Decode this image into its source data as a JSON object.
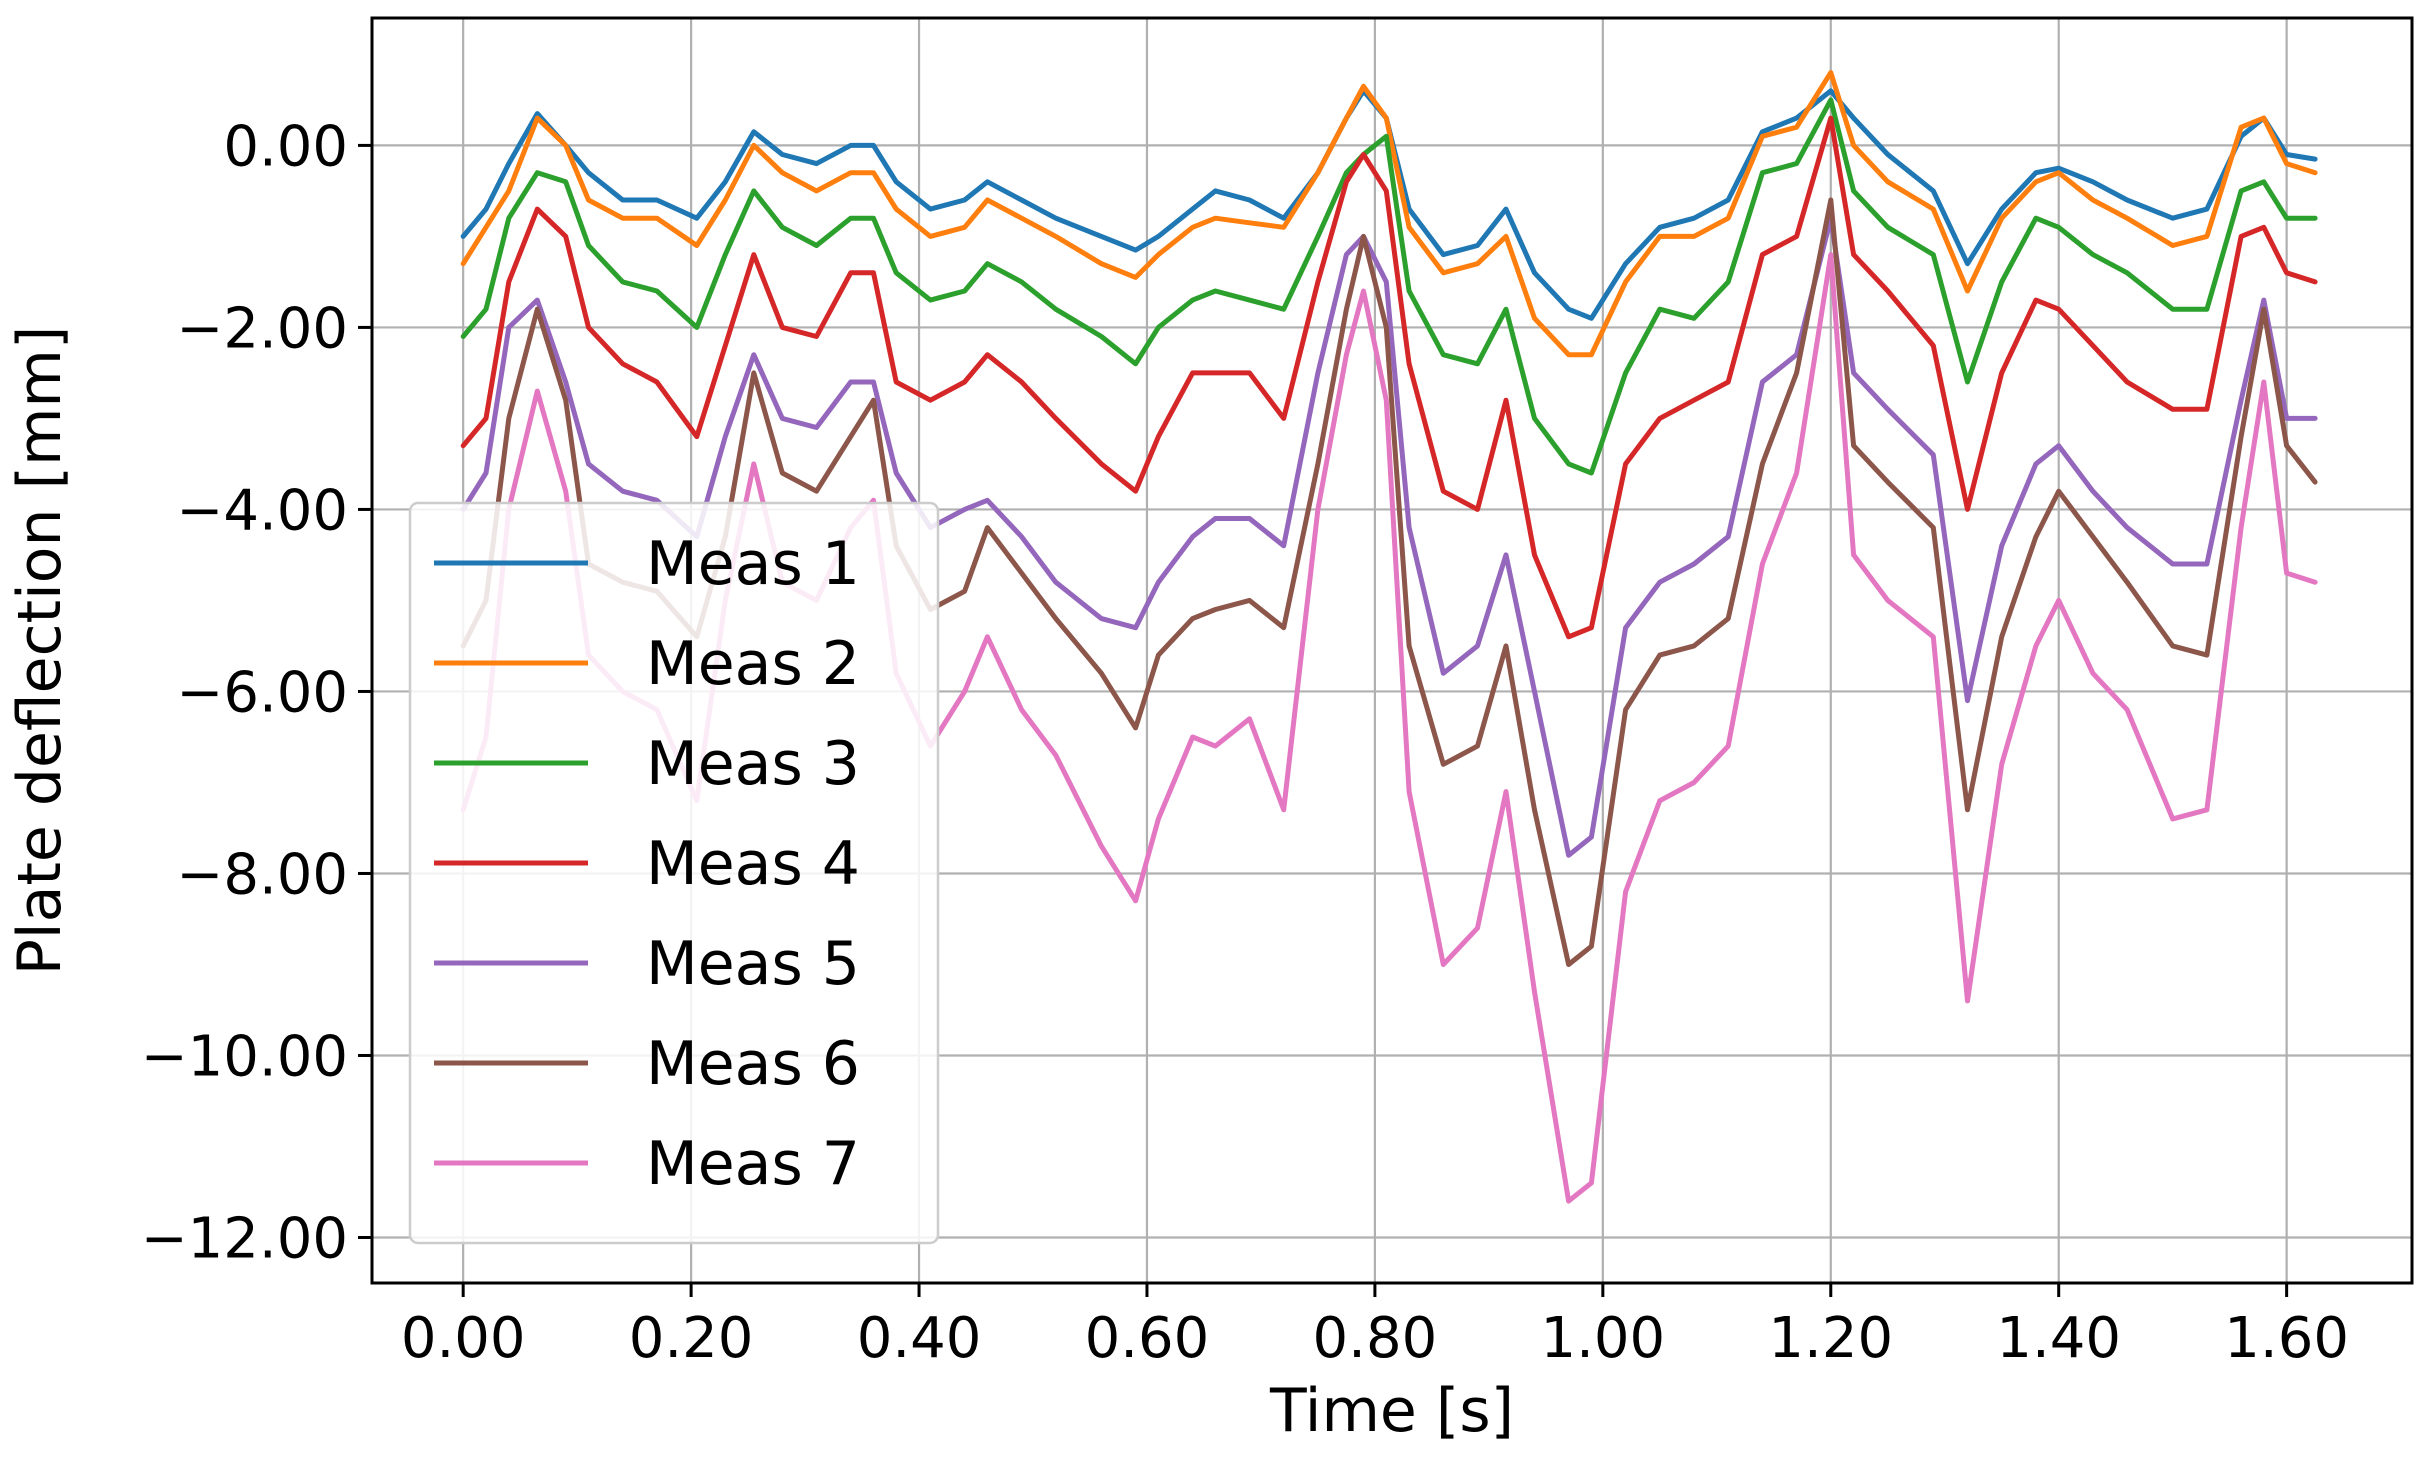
{
  "chart_data": {
    "type": "line",
    "title": "",
    "xlabel": "Time [s]",
    "ylabel": "Plate deflection [mm]",
    "xlim": [
      -0.08,
      1.71
    ],
    "ylim": [
      -12.5,
      1.4
    ],
    "grid": true,
    "legend_position": "lower-left",
    "x_ticks": [
      0.0,
      0.2,
      0.4,
      0.6,
      0.8,
      1.0,
      1.2,
      1.4,
      1.6
    ],
    "x_tick_labels": [
      "0.00",
      "0.20",
      "0.40",
      "0.60",
      "0.80",
      "1.00",
      "1.20",
      "1.40",
      "1.60"
    ],
    "y_ticks": [
      0,
      -2,
      -4,
      -6,
      -8,
      -10,
      -12
    ],
    "y_tick_labels": [
      "0.00",
      "−2.00",
      "−4.00",
      "−6.00",
      "−8.00",
      "−10.00",
      "−12.00"
    ],
    "x": [
      0.0,
      0.02,
      0.04,
      0.065,
      0.09,
      0.11,
      0.14,
      0.17,
      0.205,
      0.23,
      0.255,
      0.28,
      0.31,
      0.34,
      0.36,
      0.38,
      0.41,
      0.44,
      0.46,
      0.49,
      0.52,
      0.56,
      0.59,
      0.61,
      0.64,
      0.66,
      0.69,
      0.72,
      0.75,
      0.775,
      0.79,
      0.81,
      0.83,
      0.86,
      0.89,
      0.915,
      0.94,
      0.97,
      0.99,
      1.02,
      1.05,
      1.08,
      1.11,
      1.14,
      1.17,
      1.2,
      1.22,
      1.25,
      1.29,
      1.32,
      1.35,
      1.38,
      1.4,
      1.43,
      1.46,
      1.5,
      1.53,
      1.56,
      1.58,
      1.6,
      1.625
    ],
    "series": [
      {
        "name": "Meas 1",
        "color": "#1f77b4",
        "values": [
          -1.0,
          -0.7,
          -0.2,
          0.35,
          0.0,
          -0.3,
          -0.6,
          -0.6,
          -0.8,
          -0.4,
          0.15,
          -0.1,
          -0.2,
          0.0,
          0.0,
          -0.4,
          -0.7,
          -0.6,
          -0.4,
          -0.6,
          -0.8,
          -1.0,
          -1.15,
          -1.0,
          -0.7,
          -0.5,
          -0.6,
          -0.8,
          -0.3,
          0.3,
          0.6,
          0.3,
          -0.7,
          -1.2,
          -1.1,
          -0.7,
          -1.4,
          -1.8,
          -1.9,
          -1.3,
          -0.9,
          -0.8,
          -0.6,
          0.15,
          0.3,
          0.6,
          0.3,
          -0.1,
          -0.5,
          -1.3,
          -0.7,
          -0.3,
          -0.25,
          -0.4,
          -0.6,
          -0.8,
          -0.7,
          0.1,
          0.3,
          -0.1,
          -0.15
        ]
      },
      {
        "name": "Meas 2",
        "color": "#ff7f0e",
        "values": [
          -1.3,
          -0.9,
          -0.5,
          0.3,
          0.0,
          -0.6,
          -0.8,
          -0.8,
          -1.1,
          -0.6,
          0.0,
          -0.3,
          -0.5,
          -0.3,
          -0.3,
          -0.7,
          -1.0,
          -0.9,
          -0.6,
          -0.8,
          -1.0,
          -1.3,
          -1.45,
          -1.2,
          -0.9,
          -0.8,
          -0.85,
          -0.9,
          -0.3,
          0.3,
          0.65,
          0.3,
          -0.9,
          -1.4,
          -1.3,
          -1.0,
          -1.9,
          -2.3,
          -2.3,
          -1.5,
          -1.0,
          -1.0,
          -0.8,
          0.1,
          0.2,
          0.8,
          0.0,
          -0.4,
          -0.7,
          -1.6,
          -0.8,
          -0.4,
          -0.3,
          -0.6,
          -0.8,
          -1.1,
          -1.0,
          0.2,
          0.3,
          -0.2,
          -0.3
        ]
      },
      {
        "name": "Meas 3",
        "color": "#2ca02c",
        "values": [
          -2.1,
          -1.8,
          -0.8,
          -0.3,
          -0.4,
          -1.1,
          -1.5,
          -1.6,
          -2.0,
          -1.2,
          -0.5,
          -0.9,
          -1.1,
          -0.8,
          -0.8,
          -1.4,
          -1.7,
          -1.6,
          -1.3,
          -1.5,
          -1.8,
          -2.1,
          -2.4,
          -2.0,
          -1.7,
          -1.6,
          -1.7,
          -1.8,
          -1.0,
          -0.3,
          -0.1,
          0.1,
          -1.6,
          -2.3,
          -2.4,
          -1.8,
          -3.0,
          -3.5,
          -3.6,
          -2.5,
          -1.8,
          -1.9,
          -1.5,
          -0.3,
          -0.2,
          0.5,
          -0.5,
          -0.9,
          -1.2,
          -2.6,
          -1.5,
          -0.8,
          -0.9,
          -1.2,
          -1.4,
          -1.8,
          -1.8,
          -0.5,
          -0.4,
          -0.8,
          -0.8
        ]
      },
      {
        "name": "Meas 4",
        "color": "#d62728",
        "values": [
          -3.3,
          -3.0,
          -1.5,
          -0.7,
          -1.0,
          -2.0,
          -2.4,
          -2.6,
          -3.2,
          -2.2,
          -1.2,
          -2.0,
          -2.1,
          -1.4,
          -1.4,
          -2.6,
          -2.8,
          -2.6,
          -2.3,
          -2.6,
          -3.0,
          -3.5,
          -3.8,
          -3.2,
          -2.5,
          -2.5,
          -2.5,
          -3.0,
          -1.5,
          -0.4,
          -0.1,
          -0.5,
          -2.4,
          -3.8,
          -4.0,
          -2.8,
          -4.5,
          -5.4,
          -5.3,
          -3.5,
          -3.0,
          -2.8,
          -2.6,
          -1.2,
          -1.0,
          0.3,
          -1.2,
          -1.6,
          -2.2,
          -4.0,
          -2.5,
          -1.7,
          -1.8,
          -2.2,
          -2.6,
          -2.9,
          -2.9,
          -1.0,
          -0.9,
          -1.4,
          -1.5
        ]
      },
      {
        "name": "Meas 5",
        "color": "#9467bd",
        "values": [
          -4.0,
          -3.6,
          -2.0,
          -1.7,
          -2.6,
          -3.5,
          -3.8,
          -3.9,
          -4.3,
          -3.2,
          -2.3,
          -3.0,
          -3.1,
          -2.6,
          -2.6,
          -3.6,
          -4.2,
          -4.0,
          -3.9,
          -4.3,
          -4.8,
          -5.2,
          -5.3,
          -4.8,
          -4.3,
          -4.1,
          -4.1,
          -4.4,
          -2.5,
          -1.2,
          -1.0,
          -1.5,
          -4.2,
          -5.8,
          -5.5,
          -4.5,
          -6.0,
          -7.8,
          -7.6,
          -5.3,
          -4.8,
          -4.6,
          -4.3,
          -2.6,
          -2.3,
          -0.8,
          -2.5,
          -2.9,
          -3.4,
          -6.1,
          -4.4,
          -3.5,
          -3.3,
          -3.8,
          -4.2,
          -4.6,
          -4.6,
          -2.8,
          -1.7,
          -3.0,
          -3.0
        ]
      },
      {
        "name": "Meas 6",
        "color": "#8c564b",
        "values": [
          -5.5,
          -5.0,
          -3.0,
          -1.8,
          -2.8,
          -4.6,
          -4.8,
          -4.9,
          -5.4,
          -4.3,
          -2.5,
          -3.6,
          -3.8,
          -3.2,
          -2.8,
          -4.4,
          -5.1,
          -4.9,
          -4.2,
          -4.7,
          -5.2,
          -5.8,
          -6.4,
          -5.6,
          -5.2,
          -5.1,
          -5.0,
          -5.3,
          -3.5,
          -1.8,
          -1.0,
          -2.0,
          -5.5,
          -6.8,
          -6.6,
          -5.5,
          -7.3,
          -9.0,
          -8.8,
          -6.2,
          -5.6,
          -5.5,
          -5.2,
          -3.5,
          -2.5,
          -0.6,
          -3.3,
          -3.7,
          -4.2,
          -7.3,
          -5.4,
          -4.3,
          -3.8,
          -4.3,
          -4.8,
          -5.5,
          -5.6,
          -3.2,
          -1.8,
          -3.3,
          -3.7
        ]
      },
      {
        "name": "Meas 7",
        "color": "#e377c2",
        "values": [
          -7.3,
          -6.5,
          -4.0,
          -2.7,
          -3.8,
          -5.6,
          -6.0,
          -6.2,
          -7.2,
          -5.0,
          -3.5,
          -4.8,
          -5.0,
          -4.2,
          -3.9,
          -5.8,
          -6.6,
          -6.0,
          -5.4,
          -6.2,
          -6.7,
          -7.7,
          -8.3,
          -7.4,
          -6.5,
          -6.6,
          -6.3,
          -7.3,
          -4.0,
          -2.3,
          -1.6,
          -2.8,
          -7.1,
          -9.0,
          -8.6,
          -7.1,
          -9.3,
          -11.6,
          -11.4,
          -8.2,
          -7.2,
          -7.0,
          -6.6,
          -4.6,
          -3.6,
          -1.2,
          -4.5,
          -5.0,
          -5.4,
          -9.4,
          -6.8,
          -5.5,
          -5.0,
          -5.8,
          -6.2,
          -7.4,
          -7.3,
          -4.2,
          -2.6,
          -4.7,
          -4.8
        ]
      }
    ]
  }
}
